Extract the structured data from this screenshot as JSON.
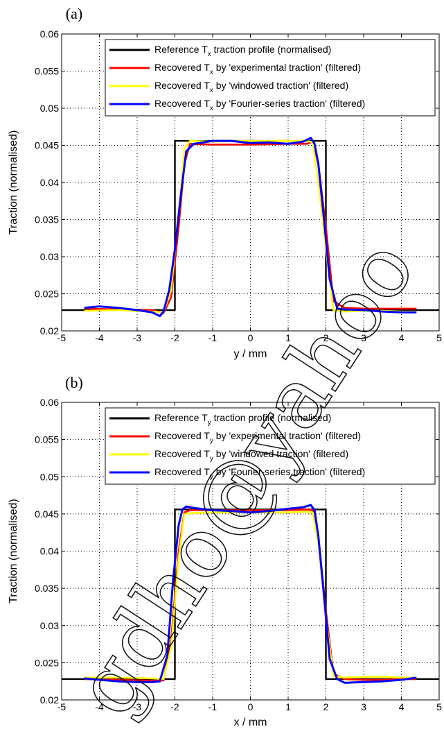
{
  "chart_data": [
    {
      "type": "line",
      "panel_label": "(a)",
      "xlabel": "y / mm",
      "ylabel": "Traction (normalised)",
      "xlim": [
        -5,
        5
      ],
      "ylim": [
        0.02,
        0.06
      ],
      "xticks": [
        "-5",
        "-4",
        "-3",
        "-2",
        "-1",
        "0",
        "1",
        "2",
        "3",
        "4",
        "5"
      ],
      "yticks": [
        "0.02",
        "0.025",
        "0.03",
        "0.035",
        "0.04",
        "0.045",
        "0.05",
        "0.055",
        "0.06"
      ],
      "grid": true,
      "legend_position": "top",
      "series": [
        {
          "name": "Reference T_x traction profile (normalised)",
          "legend_parts": [
            "Reference T",
            "x",
            " traction profile (normalised)"
          ],
          "color": "#000000",
          "x": [
            -5,
            -2,
            -2,
            2,
            2,
            5
          ],
          "y": [
            0.0228,
            0.0228,
            0.0456,
            0.0456,
            0.0228,
            0.0228
          ]
        },
        {
          "name": "Recovered T_x by 'experimental traction' (filtered)",
          "legend_parts": [
            "Recovered T",
            "x",
            " by 'experimental traction' (filtered)"
          ],
          "color": "#ff0000",
          "x": [
            -4.4,
            -3.5,
            -2.6,
            -2.3,
            -2.1,
            -1.9,
            -1.75,
            -1.6,
            -1.0,
            0,
            1.0,
            1.5,
            1.65,
            1.8,
            2.0,
            2.2,
            2.5,
            3.0,
            3.5,
            4.0,
            4.4
          ],
          "y": [
            0.023,
            0.0229,
            0.0228,
            0.0224,
            0.0245,
            0.034,
            0.0425,
            0.0452,
            0.0451,
            0.0451,
            0.0452,
            0.0452,
            0.0455,
            0.0425,
            0.034,
            0.024,
            0.0231,
            0.023,
            0.023,
            0.023,
            0.023
          ]
        },
        {
          "name": "Recovered T_x by 'windowed traction' (filtered)",
          "legend_parts": [
            "Recovered T",
            "x",
            " by 'windowed traction' (filtered)"
          ],
          "color": "#ffff00",
          "x": [
            -4.4,
            -3.5,
            -2.6,
            -2.3,
            -2.1,
            -1.9,
            -1.75,
            -1.6,
            -1.0,
            0,
            1.0,
            1.5,
            1.65,
            1.8,
            2.0,
            2.2,
            2.5,
            3.0,
            3.5,
            4.0,
            4.4
          ],
          "y": [
            0.0227,
            0.0228,
            0.0226,
            0.0225,
            0.0255,
            0.036,
            0.0445,
            0.0456,
            0.0455,
            0.0456,
            0.0456,
            0.0456,
            0.0454,
            0.04,
            0.031,
            0.0228,
            0.0226,
            0.0227,
            0.0227,
            0.0226,
            0.0226
          ]
        },
        {
          "name": "Recovered T_x by 'Fourier-series traction' (filtered)",
          "legend_parts": [
            "Recovered T",
            "x",
            " by 'Fourier-series traction' (filtered)"
          ],
          "color": "#0000ff",
          "x": [
            -4.4,
            -4.0,
            -3.5,
            -3.0,
            -2.6,
            -2.4,
            -2.3,
            -2.15,
            -2.0,
            -1.85,
            -1.7,
            -1.5,
            -1.0,
            -0.5,
            0,
            0.5,
            1.0,
            1.4,
            1.6,
            1.7,
            1.8,
            1.95,
            2.1,
            2.3,
            2.5,
            3.0,
            3.5,
            4.0,
            4.4
          ],
          "y": [
            0.0231,
            0.0233,
            0.0231,
            0.0228,
            0.0225,
            0.022,
            0.0226,
            0.0255,
            0.031,
            0.038,
            0.0442,
            0.0452,
            0.0456,
            0.0456,
            0.0453,
            0.0454,
            0.0452,
            0.0455,
            0.046,
            0.0452,
            0.0425,
            0.035,
            0.027,
            0.023,
            0.0229,
            0.0228,
            0.0226,
            0.0225,
            0.0225
          ]
        }
      ]
    },
    {
      "type": "line",
      "panel_label": "(b)",
      "xlabel": "x / mm",
      "ylabel": "Traction (normalised)",
      "xlim": [
        -5,
        5
      ],
      "ylim": [
        0.02,
        0.06
      ],
      "xticks": [
        "-5",
        "-4",
        "-3",
        "-2",
        "-1",
        "0",
        "1",
        "2",
        "3",
        "4",
        "5"
      ],
      "yticks": [
        "0.02",
        "0.025",
        "0.03",
        "0.035",
        "0.04",
        "0.045",
        "0.05",
        "0.055",
        "0.06"
      ],
      "grid": true,
      "legend_position": "top",
      "series": [
        {
          "name": "Reference T_y traction profile (normalised)",
          "legend_parts": [
            "Reference T",
            "y",
            " traction profile (normalised)"
          ],
          "color": "#000000",
          "x": [
            -5,
            -2,
            -2,
            2,
            2,
            5
          ],
          "y": [
            0.0228,
            0.0228,
            0.0456,
            0.0456,
            0.0228,
            0.0228
          ]
        },
        {
          "name": "Recovered T_y by 'experimental traction' (filtered)",
          "legend_parts": [
            "Recovered T",
            "y",
            " by 'experimental traction' (filtered)"
          ],
          "color": "#ff0000",
          "x": [
            -4.4,
            -3.5,
            -2.6,
            -2.3,
            -2.1,
            -1.9,
            -1.75,
            -1.6,
            -1.0,
            0,
            1.0,
            1.5,
            1.65,
            1.8,
            2.0,
            2.2,
            2.5,
            3.0,
            3.5,
            4.0,
            4.4
          ],
          "y": [
            0.0228,
            0.0227,
            0.0226,
            0.0226,
            0.028,
            0.04,
            0.0452,
            0.0455,
            0.0455,
            0.0455,
            0.0455,
            0.0456,
            0.0455,
            0.042,
            0.032,
            0.0235,
            0.0228,
            0.0227,
            0.0227,
            0.0228,
            0.0228
          ]
        },
        {
          "name": "Recovered T_y by 'windowed traction' (filtered)",
          "legend_parts": [
            "Recovered T",
            "y",
            " by 'windowed traction' (filtered)"
          ],
          "color": "#ffff00",
          "x": [
            -4.4,
            -3.5,
            -2.6,
            -2.3,
            -2.1,
            -1.9,
            -1.75,
            -1.6,
            -1.0,
            0,
            1.0,
            1.5,
            1.65,
            1.8,
            2.0,
            2.2,
            2.5,
            3.0,
            3.5,
            4.0,
            4.4
          ],
          "y": [
            0.023,
            0.023,
            0.0229,
            0.0228,
            0.027,
            0.039,
            0.045,
            0.0451,
            0.0452,
            0.0452,
            0.0452,
            0.0453,
            0.0452,
            0.041,
            0.031,
            0.0232,
            0.023,
            0.0231,
            0.0231,
            0.023,
            0.023
          ]
        },
        {
          "name": "Recovered T_y by 'Fourier-series traction' (filtered)",
          "legend_parts": [
            "Recovered T",
            "y",
            " by 'Fourier-series traction' (filtered)"
          ],
          "color": "#0000ff",
          "x": [
            -4.4,
            -4.0,
            -3.5,
            -3.0,
            -2.6,
            -2.4,
            -2.2,
            -2.05,
            -1.9,
            -1.8,
            -1.7,
            -1.5,
            -1.0,
            -0.5,
            0,
            0.5,
            1.0,
            1.4,
            1.6,
            1.7,
            1.8,
            1.95,
            2.1,
            2.3,
            2.5,
            3.0,
            3.5,
            4.0,
            4.4
          ],
          "y": [
            0.0229,
            0.0227,
            0.0225,
            0.0224,
            0.0224,
            0.0225,
            0.026,
            0.036,
            0.0435,
            0.0456,
            0.046,
            0.0458,
            0.0455,
            0.0454,
            0.0452,
            0.0454,
            0.0457,
            0.0459,
            0.0462,
            0.0455,
            0.042,
            0.034,
            0.0255,
            0.0228,
            0.0223,
            0.0224,
            0.0225,
            0.0227,
            0.023
          ]
        }
      ]
    }
  ],
  "watermark": {
    "text": "gdho@yahoo"
  }
}
